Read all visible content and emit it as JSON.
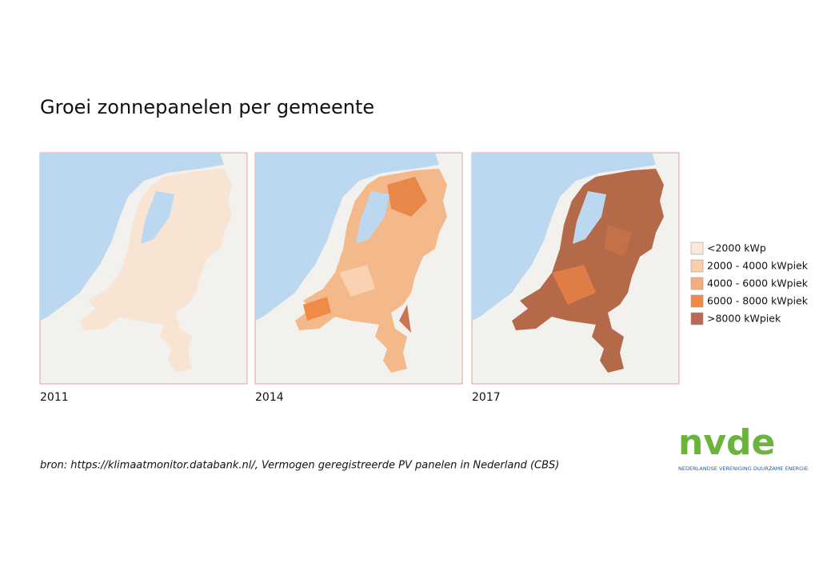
{
  "header": {
    "title": "Groei zonnepanelen per gemeente"
  },
  "maps": [
    {
      "year": "2011"
    },
    {
      "year": "2014"
    },
    {
      "year": "2017"
    }
  ],
  "legend": {
    "items": [
      {
        "label": "<2000 kWp",
        "color": "#fbe9dd"
      },
      {
        "label": "2000 - 4000 kWpiek",
        "color": "#f9cfa9"
      },
      {
        "label": "4000 - 6000 kWpiek",
        "color": "#f4ae7b"
      },
      {
        "label": "6000 - 8000 kWpiek",
        "color": "#f08a47"
      },
      {
        "label": ">8000 kWpiek",
        "color": "#b86a55"
      }
    ]
  },
  "source": "bron: https://klimaatmonitor.databank.nl/, Vermogen geregistreerde PV panelen in Nederland (CBS)",
  "logo": {
    "name": "nvde",
    "tagline": "NEDERLANDSE VERENIGING DUURZAME ENERGIE"
  }
}
